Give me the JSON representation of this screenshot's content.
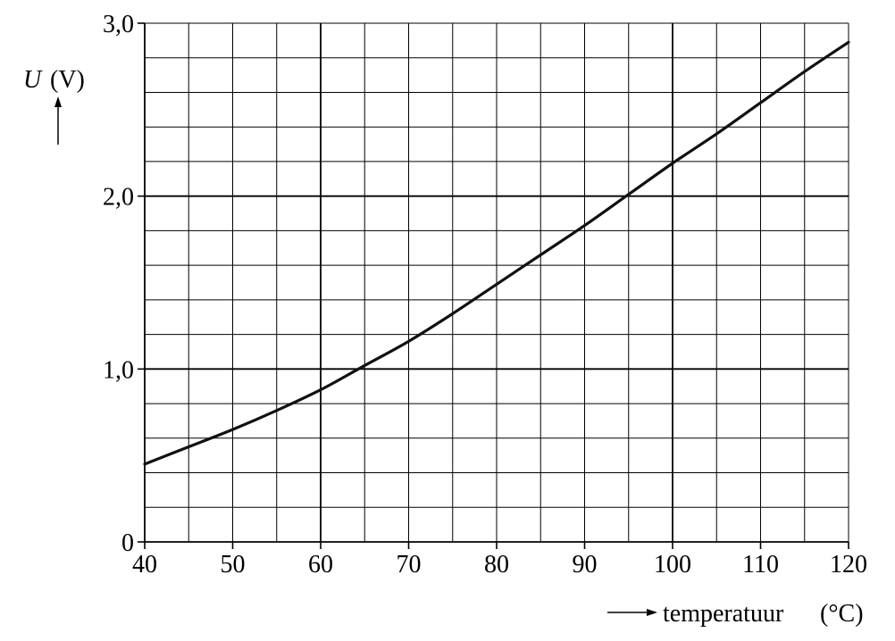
{
  "chart_data": {
    "type": "line",
    "title": "",
    "xlabel": "temperatuur",
    "xunit": "(°C)",
    "ylabel_symbol": "U",
    "ylabel_unit": "(V)",
    "xlim": [
      40,
      120
    ],
    "ylim": [
      0,
      3.0
    ],
    "grid": true,
    "x_minor_step": 5,
    "y_minor_step": 0.2,
    "x_ticks": [
      40,
      50,
      60,
      70,
      80,
      90,
      100,
      110,
      120
    ],
    "x_tick_labels": [
      "40",
      "50",
      "60",
      "70",
      "80",
      "90",
      "100",
      "110",
      "120"
    ],
    "y_ticks": [
      0,
      1.0,
      2.0,
      3.0
    ],
    "y_tick_labels": [
      "0",
      "1,0",
      "2,0",
      "3,0"
    ],
    "x_major_gridlines": [
      60,
      100
    ],
    "y_major_gridlines": [
      1.0,
      2.0
    ],
    "series": [
      {
        "x": [
          40,
          45,
          50,
          55,
          60,
          65,
          70,
          75,
          80,
          85,
          90,
          95,
          100,
          105,
          110,
          115,
          120
        ],
        "y": [
          0.45,
          0.55,
          0.65,
          0.76,
          0.88,
          1.02,
          1.16,
          1.32,
          1.49,
          1.66,
          1.83,
          2.01,
          2.19,
          2.36,
          2.54,
          2.72,
          2.89
        ]
      }
    ]
  }
}
